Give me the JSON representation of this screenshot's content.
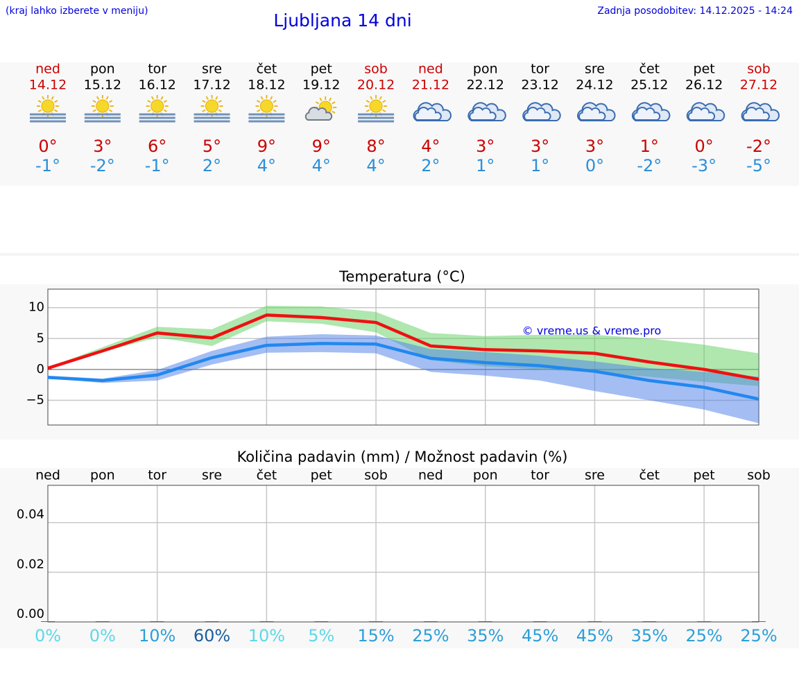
{
  "header": {
    "note": "(kraj lahko izberete v meniju)",
    "title": "Ljubljana 14 dni",
    "updated": "Zadnja posodobitev: 14.12.2025 - 14:24"
  },
  "days": [
    {
      "weekday": "ned",
      "date": "14.12",
      "high": "0°",
      "low": "-1°",
      "icon": "sun-fog",
      "weekend": true
    },
    {
      "weekday": "pon",
      "date": "15.12",
      "high": "3°",
      "low": "-2°",
      "icon": "sun-fog",
      "weekend": false
    },
    {
      "weekday": "tor",
      "date": "16.12",
      "high": "6°",
      "low": "-1°",
      "icon": "sun-fog",
      "weekend": false
    },
    {
      "weekday": "sre",
      "date": "17.12",
      "high": "5°",
      "low": "2°",
      "icon": "sun-fog",
      "weekend": false
    },
    {
      "weekday": "čet",
      "date": "18.12",
      "high": "9°",
      "low": "4°",
      "icon": "sun-fog",
      "weekend": false
    },
    {
      "weekday": "pet",
      "date": "19.12",
      "high": "9°",
      "low": "4°",
      "icon": "sun-cloud",
      "weekend": false
    },
    {
      "weekday": "sob",
      "date": "20.12",
      "high": "8°",
      "low": "4°",
      "icon": "sun-fog",
      "weekend": true
    },
    {
      "weekday": "ned",
      "date": "21.12",
      "high": "4°",
      "low": "2°",
      "icon": "cloud",
      "weekend": true
    },
    {
      "weekday": "pon",
      "date": "22.12",
      "high": "3°",
      "low": "1°",
      "icon": "cloud",
      "weekend": false
    },
    {
      "weekday": "tor",
      "date": "23.12",
      "high": "3°",
      "low": "1°",
      "icon": "cloud",
      "weekend": false
    },
    {
      "weekday": "sre",
      "date": "24.12",
      "high": "3°",
      "low": "0°",
      "icon": "cloud",
      "weekend": false
    },
    {
      "weekday": "čet",
      "date": "25.12",
      "high": "1°",
      "low": "-2°",
      "icon": "cloud",
      "weekend": false
    },
    {
      "weekday": "pet",
      "date": "26.12",
      "high": "0°",
      "low": "-3°",
      "icon": "cloud",
      "weekend": false
    },
    {
      "weekday": "sob",
      "date": "27.12",
      "high": "-2°",
      "low": "-5°",
      "icon": "cloud",
      "weekend": true
    }
  ],
  "chart_data": [
    {
      "type": "line",
      "title": "Temperatura (°C)",
      "annotation": "© vreme.us & vreme.pro",
      "categories": [
        null,
        null,
        null,
        null,
        null,
        null,
        null,
        null,
        null,
        null,
        null,
        null,
        null,
        null
      ],
      "ylim": [
        -9,
        13
      ],
      "yticks": [
        10,
        5,
        0,
        {
          "value": -5,
          "label": "−5"
        }
      ],
      "grid": true,
      "series": [
        {
          "color": "#ee1111",
          "band_color": "#5fcf5f",
          "values": [
            0.2,
            3.0,
            5.9,
            5.1,
            8.8,
            8.4,
            7.6,
            3.8,
            3.2,
            3.0,
            2.6,
            1.2,
            0.0,
            -1.6
          ],
          "band_high": [
            0.3,
            3.6,
            6.9,
            6.5,
            10.3,
            10.2,
            9.3,
            5.9,
            5.4,
            5.6,
            5.6,
            5.0,
            4.0,
            2.6
          ],
          "band_low": [
            0.2,
            2.8,
            5.2,
            3.8,
            7.8,
            7.4,
            6.0,
            1.5,
            0.5,
            0.0,
            -0.5,
            -1.2,
            -2.0,
            -2.7
          ]
        },
        {
          "color": "#2288ee",
          "band_color": "#4a7ee8",
          "values": [
            -1.3,
            -1.8,
            -0.9,
            1.9,
            3.9,
            4.2,
            4.1,
            1.8,
            1.1,
            0.6,
            -0.3,
            -1.8,
            -2.9,
            -4.8
          ],
          "band_high": [
            -1.0,
            -1.5,
            -0.1,
            3.0,
            5.3,
            5.7,
            5.5,
            3.3,
            2.8,
            2.2,
            1.3,
            0.2,
            -0.4,
            -1.2
          ],
          "band_low": [
            -1.4,
            -2.2,
            -1.8,
            0.8,
            2.7,
            2.8,
            2.6,
            -0.4,
            -1.0,
            -1.8,
            -3.5,
            -5.0,
            -6.5,
            -8.7
          ]
        }
      ]
    },
    {
      "type": "bar",
      "title": "Količina padavin (mm) / Možnost padavin (%)",
      "categories": [
        "ned",
        "pon",
        "tor",
        "sre",
        "čet",
        "pet",
        "sob",
        "ned",
        "pon",
        "tor",
        "sre",
        "čet",
        "pet",
        "sob"
      ],
      "values": [
        0,
        0,
        0,
        0,
        0,
        0,
        0,
        0,
        0,
        0,
        0,
        0,
        0,
        0
      ],
      "color": "#8b5a2b",
      "ylim": [
        0,
        0.055
      ],
      "yticks": [
        {
          "value": 0,
          "label": "0.00"
        },
        {
          "value": 0.02,
          "label": "0.02"
        },
        {
          "value": 0.04,
          "label": "0.04"
        }
      ],
      "grid": true,
      "chance": [
        0,
        0,
        10,
        60,
        10,
        5,
        15,
        25,
        35,
        45,
        45,
        35,
        25,
        25
      ],
      "chance_labels": [
        "0%",
        "0%",
        "10%",
        "60%",
        "10%",
        "5%",
        "15%",
        "25%",
        "35%",
        "45%",
        "45%",
        "35%",
        "25%",
        "25%"
      ],
      "chance_colors": [
        "#5dd8e6",
        "#5dd8e6",
        "#2b9fd8",
        "#1a5e9e",
        "#5dd8e6",
        "#5dd8e6",
        "#2b9fd8",
        "#2b9fd8",
        "#2b9fd8",
        "#2b9fd8",
        "#2b9fd8",
        "#2b9fd8",
        "#2b9fd8",
        "#2b9fd8"
      ]
    }
  ]
}
